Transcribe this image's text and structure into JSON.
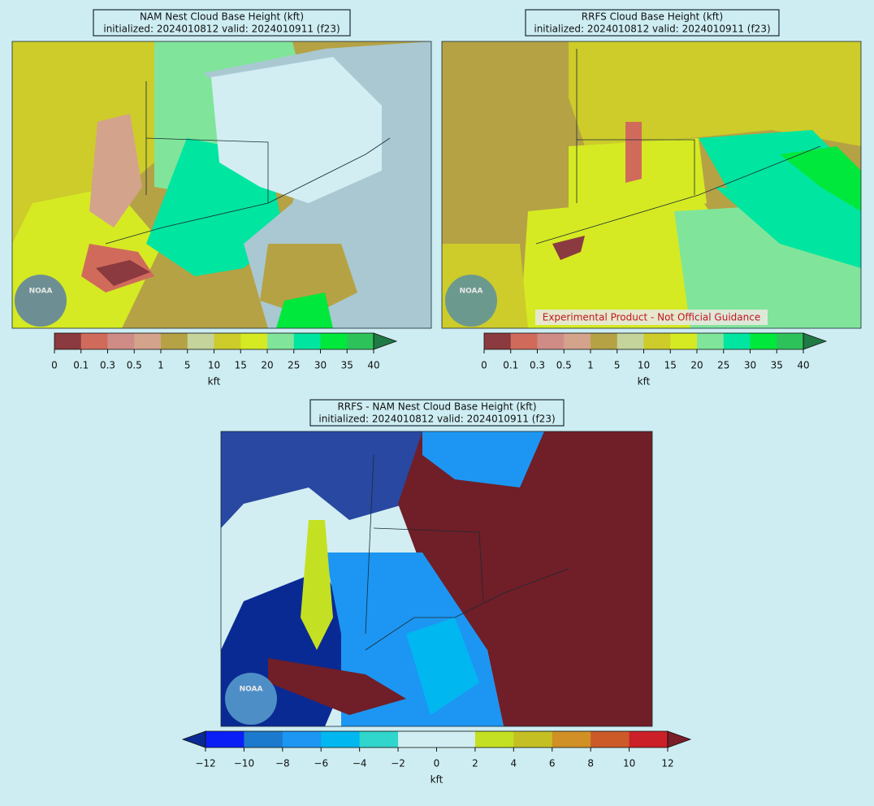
{
  "logo": "NOAA",
  "panels": [
    {
      "title": "NAM Nest Cloud Base Height (kft)",
      "subtitle": "initialized: 2024010812 valid: 2024010911 (f23)",
      "colorbar": {
        "label": "kft",
        "extend": "max",
        "ticks": [
          0,
          0.1,
          0.3,
          0.5,
          1,
          5,
          10,
          15,
          20,
          25,
          30,
          35,
          40
        ],
        "colors": [
          "#8b3a3f",
          "#d06b5b",
          "#cf8c86",
          "#d4a38c",
          "#b5a245",
          "#c4d49a",
          "#cdcc2a",
          "#d5ea22",
          "#80e59a",
          "#00e5a0",
          "#00e83c",
          "#2dc35a"
        ],
        "extend_colors": [
          "#1f7a45"
        ]
      }
    },
    {
      "title": "RRFS Cloud Base Height (kft)",
      "subtitle": "initialized: 2024010812 valid: 2024010911 (f23)",
      "annotation": "Experimental Product - Not Official Guidance",
      "colorbar": {
        "label": "kft",
        "extend": "max",
        "ticks": [
          0,
          0.1,
          0.3,
          0.5,
          1,
          5,
          10,
          15,
          20,
          25,
          30,
          35,
          40
        ],
        "colors": [
          "#8b3a3f",
          "#d06b5b",
          "#cf8c86",
          "#d4a38c",
          "#b5a245",
          "#c4d49a",
          "#cdcc2a",
          "#d5ea22",
          "#80e59a",
          "#00e5a0",
          "#00e83c",
          "#2dc35a"
        ],
        "extend_colors": [
          "#1f7a45"
        ]
      }
    },
    {
      "title": "RRFS - NAM Nest Cloud Base Height (kft)",
      "subtitle": "initialized: 2024010812 valid: 2024010911 (f23)",
      "colorbar": {
        "label": "kft",
        "extend": "both",
        "ticks": [
          {
            "value": -12,
            "label": "−12"
          },
          {
            "value": -10,
            "label": "−10"
          },
          {
            "value": -8,
            "label": "−8"
          },
          {
            "value": -6,
            "label": "−6"
          },
          {
            "value": -4,
            "label": "−4"
          },
          {
            "value": -2,
            "label": "−2"
          },
          0,
          2,
          4,
          6,
          8,
          10,
          12
        ],
        "colors": [
          "#0a1ff5",
          "#1b7ace",
          "#1c96f2",
          "#00b8ef",
          "#30d5cc",
          "#d2eef2",
          "#d2eef2",
          "#c4e022",
          "#c4c024",
          "#d09025",
          "#cc5a28",
          "#cc2028"
        ],
        "extend_colors": [
          "#0a2a93",
          "#7a1e28"
        ]
      }
    }
  ]
}
